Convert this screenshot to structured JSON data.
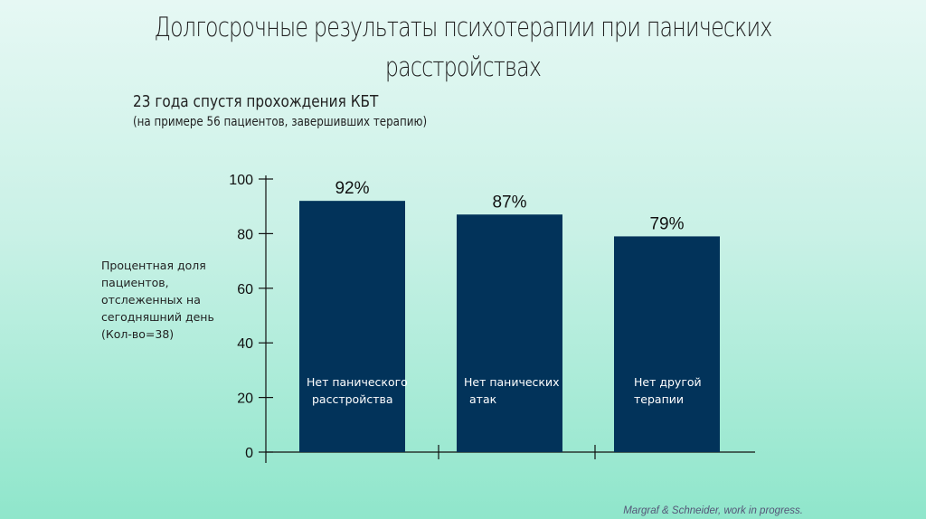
{
  "title": "Долгосрочные результаты психотерапии при панических расстройствах",
  "subtitle": "23 года спустя прохождения КБТ",
  "note": "(на примере 56 пациентов, завершивших терапию)",
  "source": "Margraf & Schneider, work in progress.",
  "chart_data": {
    "type": "bar",
    "categories": [
      "Нет панического расстройства",
      "Нет панических атак",
      "Нет другой терапии"
    ],
    "values": [
      92,
      87,
      79
    ],
    "data_labels": [
      "92%",
      "87%",
      "79%"
    ],
    "ylabel": "Процентная доля пациентов, отслеженных на сегодняшний день (Кол-во=38)",
    "ylim": [
      0,
      100
    ],
    "yticks": [
      "0",
      "20",
      "40",
      "60",
      "80",
      "100"
    ],
    "bar_color": "#02335a",
    "grid": false
  }
}
